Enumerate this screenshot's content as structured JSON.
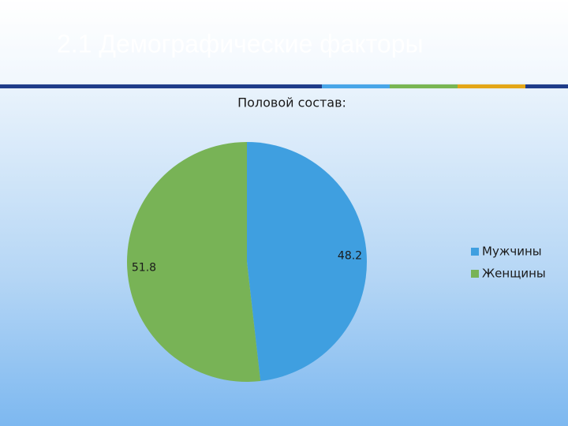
{
  "slide_title": "2.1 Демографические факторы",
  "chart_data": {
    "type": "pie",
    "title": "Половой состав:",
    "categories": [
      "Мужчины",
      "Женщины"
    ],
    "values": [
      48.2,
      51.8
    ],
    "colors": [
      "#3f9fe0",
      "#78b356"
    ],
    "legend": "right"
  }
}
